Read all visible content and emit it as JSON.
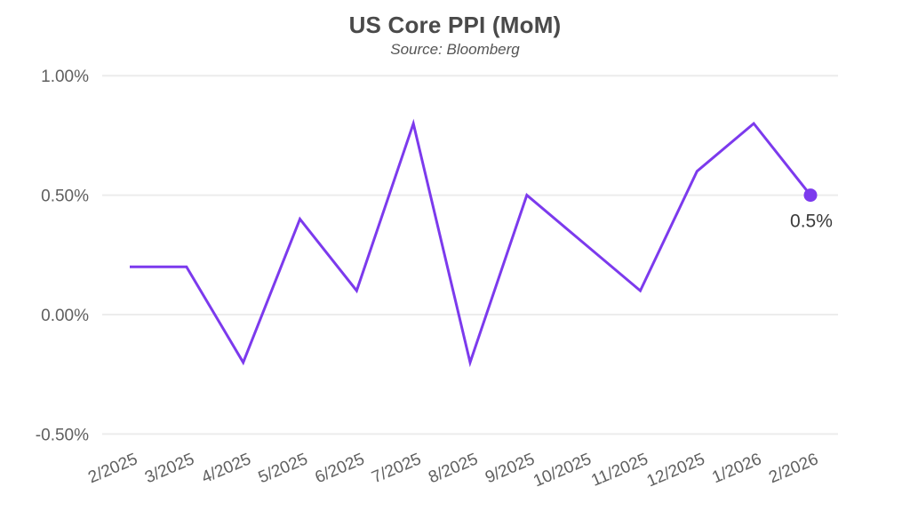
{
  "chart_data": {
    "type": "line",
    "title": "US Core PPI (MoM)",
    "subtitle": "Source: Bloomberg",
    "categories": [
      "2/2025",
      "3/2025",
      "4/2025",
      "5/2025",
      "6/2025",
      "7/2025",
      "8/2025",
      "9/2025",
      "10/2025",
      "11/2025",
      "12/2025",
      "1/2026",
      "2/2026"
    ],
    "values": [
      0.2,
      0.2,
      -0.2,
      0.4,
      0.1,
      0.8,
      -0.2,
      0.5,
      0.3,
      0.1,
      0.6,
      0.8,
      0.5
    ],
    "unit": "%",
    "xlabel": "",
    "ylabel": "",
    "ylim": [
      -0.5,
      1.0
    ],
    "y_ticks": [
      {
        "value": 1.0,
        "label": "1.00%"
      },
      {
        "value": 0.5,
        "label": "0.50%"
      },
      {
        "value": 0.0,
        "label": "0.00%"
      },
      {
        "value": -0.5,
        "label": "-0.50%"
      }
    ],
    "grid": "horizontal",
    "legend": "none",
    "x_tick_rotation_deg": -23,
    "last_point_label": "0.5%",
    "line_color": "#7C3AED",
    "marker_color": "#7C3AED",
    "grid_color": "#ECECEC"
  }
}
